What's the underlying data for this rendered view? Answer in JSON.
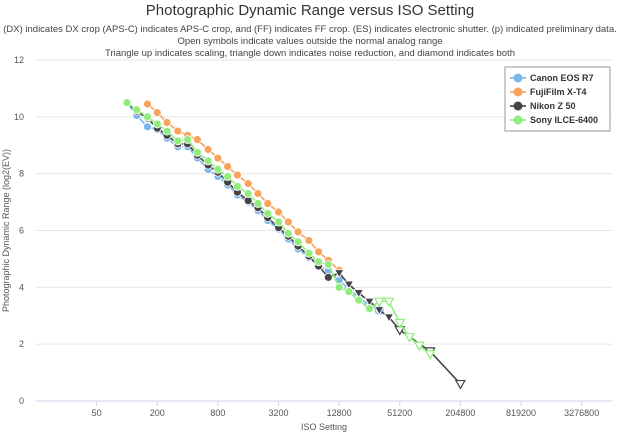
{
  "chart_data": {
    "type": "line",
    "title": "Photographic Dynamic Range versus ISO Setting",
    "subtitle_lines": [
      "(DX) indicates DX crop (APS-C) indicates APS-C crop, and (FF) indicates FF crop. (ES) indicates electronic shutter. (p) indicated preliminary data.",
      "Open symbols indicate values outside the normal analog range",
      "Triangle up indicates scaling, triangle down indicates noise reduction, and diamond indicates both"
    ],
    "xlabel": "ISO Setting",
    "ylabel": "Photographic Dynamic Range (log2(EV))",
    "x_scale": "log2",
    "xlim": [
      12.5,
      6553600
    ],
    "ylim": [
      0,
      12
    ],
    "x_ticks": [
      "50",
      "200",
      "800",
      "3200",
      "12800",
      "51200",
      "204800",
      "819200",
      "3276800"
    ],
    "y_ticks": [
      "0",
      "2",
      "4",
      "6",
      "8",
      "10",
      "12"
    ],
    "legend_position": "top-right",
    "series": [
      {
        "name": "Canon EOS R7",
        "color": "#7cb5ec",
        "x": [
          100,
          125,
          160,
          200,
          250,
          320,
          400,
          500,
          640,
          800,
          1000,
          1250,
          1600,
          2000,
          2500,
          3200,
          4000,
          5000,
          6400,
          8000,
          10000,
          12800,
          16000,
          20000,
          25600,
          32000
        ],
        "y": [
          10.5,
          10.05,
          9.65,
          9.55,
          9.25,
          8.95,
          8.95,
          8.55,
          8.15,
          7.9,
          7.6,
          7.25,
          7.0,
          6.7,
          6.35,
          6.05,
          5.7,
          5.35,
          5.05,
          4.75,
          4.6,
          4.25,
          3.95,
          3.65,
          3.35,
          3.2
        ],
        "open_from_index": 22
      },
      {
        "name": "FujiFilm X-T4",
        "color": "#f7a35c",
        "x": [
          160,
          200,
          250,
          320,
          400,
          500,
          640,
          800,
          1000,
          1250,
          1600,
          2000,
          2500,
          3200,
          4000,
          5000,
          6400,
          8000,
          10000,
          12800
        ],
        "y": [
          10.45,
          10.15,
          9.8,
          9.5,
          9.35,
          9.2,
          8.85,
          8.55,
          8.25,
          7.95,
          7.65,
          7.3,
          6.95,
          6.65,
          6.3,
          5.95,
          5.65,
          5.25,
          4.95,
          4.6
        ]
      },
      {
        "name": "Nikon Z 50",
        "color": "#434348",
        "x": [
          100,
          125,
          160,
          200,
          250,
          320,
          400,
          500,
          640,
          800,
          1000,
          1250,
          1600,
          2000,
          2500,
          3200,
          4000,
          5000,
          6400,
          8000,
          10000,
          12800,
          16000,
          20000,
          25600,
          32000,
          40000,
          51200,
          102400,
          204800
        ],
        "y": [
          10.5,
          10.2,
          9.95,
          9.6,
          9.35,
          9.05,
          9.05,
          8.65,
          8.3,
          8.05,
          7.7,
          7.35,
          7.05,
          6.8,
          6.45,
          6.1,
          5.8,
          5.45,
          5.1,
          4.75,
          4.35,
          4.5,
          4.1,
          3.8,
          3.5,
          3.2,
          2.95,
          2.5,
          1.75,
          0.6
        ],
        "triangle_down_from_index": 21,
        "open_from_index": 27
      },
      {
        "name": "Sony ILCE-6400",
        "color": "#90ed7d",
        "x": [
          100,
          125,
          160,
          200,
          250,
          320,
          400,
          500,
          640,
          800,
          1000,
          1250,
          1600,
          2000,
          2500,
          3200,
          4000,
          5000,
          6400,
          8000,
          10000,
          12800,
          16000,
          20000,
          25600,
          32000,
          40000,
          51200,
          64000,
          80000,
          102400
        ],
        "y": [
          10.5,
          10.25,
          10.0,
          9.75,
          9.5,
          9.15,
          9.2,
          8.75,
          8.45,
          8.15,
          7.9,
          7.55,
          7.3,
          6.95,
          6.6,
          6.3,
          5.9,
          5.6,
          5.2,
          4.9,
          4.8,
          4.0,
          3.85,
          3.55,
          3.25,
          3.5,
          3.5,
          2.75,
          2.25,
          1.95,
          1.65
        ],
        "triangle_down_from_index": 25,
        "open_from_index": 25
      }
    ]
  }
}
